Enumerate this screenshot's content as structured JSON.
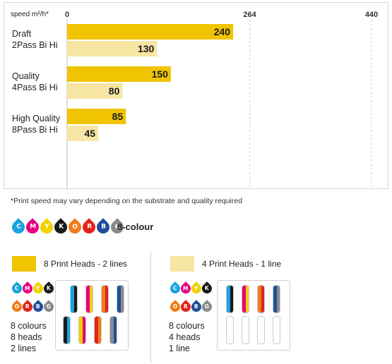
{
  "chart_data": {
    "type": "bar",
    "orientation": "horizontal",
    "unit_label": "speed m²/h*",
    "x_ticks": [
      "0",
      "264",
      "440"
    ],
    "xlim": [
      0,
      440
    ],
    "grid": true,
    "categories": [
      {
        "line1": "Draft",
        "line2": "2Pass Bi Hi"
      },
      {
        "line1": "Quality",
        "line2": "4Pass Bi Hi"
      },
      {
        "line1": "High Quality",
        "line2": "8Pass Bi Hi"
      }
    ],
    "series": [
      {
        "name": "8 Print Heads - 2 lines",
        "color": "#f0c400",
        "values": [
          240,
          150,
          85
        ]
      },
      {
        "name": "4 Print Heads - 1 line",
        "color": "#f7e5a3",
        "values": [
          130,
          80,
          45
        ]
      }
    ]
  },
  "footnote": "*Print speed may vary depending on the substrate and quality required",
  "ink_set": {
    "label": "8-colour",
    "inks": [
      {
        "letter": "C",
        "color": "#1aa3e0",
        "icon": "cyan-ink-drop-icon"
      },
      {
        "letter": "M",
        "color": "#e5007e",
        "icon": "magenta-ink-drop-icon"
      },
      {
        "letter": "Y",
        "color": "#f2d100",
        "icon": "yellow-ink-drop-icon"
      },
      {
        "letter": "K",
        "color": "#1a1a1a",
        "icon": "black-ink-drop-icon"
      },
      {
        "letter": "O",
        "color": "#f07d1a",
        "icon": "orange-ink-drop-icon"
      },
      {
        "letter": "R",
        "color": "#e2231a",
        "icon": "red-ink-drop-icon"
      },
      {
        "letter": "B",
        "color": "#1f4e9c",
        "icon": "blue-ink-drop-icon"
      },
      {
        "letter": "G",
        "color": "#8a8a8a",
        "icon": "grey-ink-drop-icon"
      }
    ]
  },
  "configs": [
    {
      "legend": "8 Print Heads - 2 lines",
      "color": "#f0c400",
      "specs": [
        "8 colours",
        "8 heads",
        "2 lines"
      ],
      "head_rows": [
        [
          [
            "#1aa3e0",
            "#1a1a1a"
          ],
          [
            "#e5007e",
            "#f2d100"
          ],
          [
            "#f07d1a",
            "#e2231a"
          ],
          [
            "#1f4e9c",
            "#8a8a8a"
          ]
        ],
        [
          [
            "#1a1a1a",
            "#1aa3e0"
          ],
          [
            "#f2d100",
            "#e5007e"
          ],
          [
            "#e2231a",
            "#f07d1a"
          ],
          [
            "#8a8a8a",
            "#1f4e9c"
          ]
        ]
      ]
    },
    {
      "legend": "4 Print Heads - 1 line",
      "color": "#f7e5a3",
      "specs": [
        "8 colours",
        "4 heads",
        "1 line"
      ],
      "head_rows": [
        [
          [
            "#1aa3e0",
            "#1a1a1a"
          ],
          [
            "#e5007e",
            "#f2d100"
          ],
          [
            "#f07d1a",
            "#e2231a"
          ],
          [
            "#1f4e9c",
            "#8a8a8a"
          ]
        ],
        [
          null,
          null,
          null,
          null
        ]
      ]
    }
  ]
}
